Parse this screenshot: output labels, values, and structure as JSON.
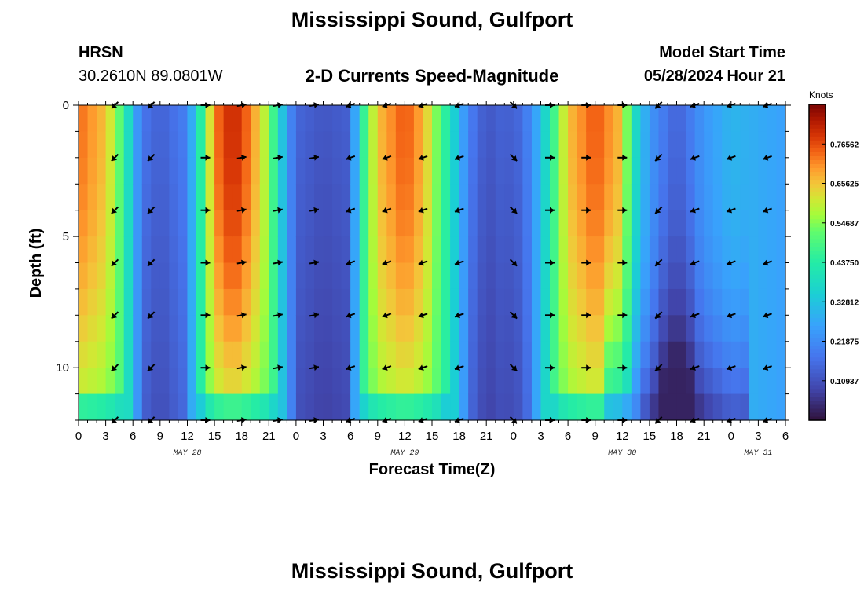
{
  "header": {
    "title": "Mississippi Sound, Gulfport",
    "station_id": "HRSN",
    "station_coords": "30.2610N  89.0801W",
    "subtitle": "2-D Currents Speed-Magnitude",
    "model_start_label": "Model Start Time",
    "model_start_value": "05/28/2024 Hour 21"
  },
  "footer": {
    "title": "Mississippi Sound, Gulfport"
  },
  "chart_data": {
    "type": "heatmap",
    "xlabel": "Forecast Time(Z)",
    "ylabel": "Depth (ft)",
    "x_range_hours": [
      0,
      78
    ],
    "x_ticks": [
      {
        "h": 0,
        "label": "0"
      },
      {
        "h": 3,
        "label": "3"
      },
      {
        "h": 6,
        "label": "6"
      },
      {
        "h": 9,
        "label": "9"
      },
      {
        "h": 12,
        "label": "12"
      },
      {
        "h": 15,
        "label": "15"
      },
      {
        "h": 18,
        "label": "18"
      },
      {
        "h": 21,
        "label": "21"
      },
      {
        "h": 24,
        "label": "0"
      },
      {
        "h": 27,
        "label": "3"
      },
      {
        "h": 30,
        "label": "6"
      },
      {
        "h": 33,
        "label": "9"
      },
      {
        "h": 36,
        "label": "12"
      },
      {
        "h": 39,
        "label": "15"
      },
      {
        "h": 42,
        "label": "18"
      },
      {
        "h": 45,
        "label": "21"
      },
      {
        "h": 48,
        "label": "0"
      },
      {
        "h": 51,
        "label": "3"
      },
      {
        "h": 54,
        "label": "6"
      },
      {
        "h": 57,
        "label": "9"
      },
      {
        "h": 60,
        "label": "12"
      },
      {
        "h": 63,
        "label": "15"
      },
      {
        "h": 66,
        "label": "18"
      },
      {
        "h": 69,
        "label": "21"
      },
      {
        "h": 72,
        "label": "0"
      },
      {
        "h": 75,
        "label": "3"
      },
      {
        "h": 78,
        "label": "6"
      }
    ],
    "date_labels": [
      {
        "h": 12,
        "label": "MAY 28"
      },
      {
        "h": 36,
        "label": "MAY 29"
      },
      {
        "h": 60,
        "label": "MAY 30"
      },
      {
        "h": 75,
        "label": "MAY 31"
      }
    ],
    "y_range_ft": [
      0,
      12
    ],
    "y_ticks": [
      {
        "v": 0,
        "label": "0"
      },
      {
        "v": 5,
        "label": "5"
      },
      {
        "v": 10,
        "label": "10"
      }
    ],
    "colorbar": {
      "unit": "Knots",
      "range": [
        0.0,
        0.875
      ],
      "ticks": [
        "0.76562",
        "0.65625",
        "0.54687",
        "0.43750",
        "0.32812",
        "0.21875",
        "0.10937"
      ],
      "tick_values": [
        0.76562,
        0.65625,
        0.54687,
        0.4375,
        0.32812,
        0.21875,
        0.10937
      ],
      "colormap": "turbo"
    },
    "speed_profile_keyframes": {
      "note_hours": "speed (knots) at surface vs forecast hour",
      "hours": [
        0,
        3,
        5,
        6,
        7,
        9,
        12,
        14,
        15,
        17,
        19,
        21,
        22,
        23,
        24,
        27,
        30,
        31,
        33,
        36,
        38,
        41,
        43,
        45,
        47,
        48,
        50,
        52,
        54,
        57,
        60,
        61,
        63,
        66,
        69,
        72,
        75,
        78
      ],
      "speeds": [
        0.74,
        0.66,
        0.47,
        0.3,
        0.18,
        0.14,
        0.2,
        0.52,
        0.72,
        0.82,
        0.72,
        0.55,
        0.4,
        0.25,
        0.15,
        0.12,
        0.14,
        0.4,
        0.66,
        0.76,
        0.68,
        0.4,
        0.2,
        0.12,
        0.15,
        0.13,
        0.22,
        0.42,
        0.66,
        0.76,
        0.66,
        0.42,
        0.24,
        0.14,
        0.24,
        0.3,
        0.28,
        0.26
      ]
    },
    "vectors": {
      "hours": [
        4,
        8,
        14,
        18,
        22,
        26,
        30,
        34,
        38,
        42,
        48,
        52,
        56,
        60,
        64,
        68,
        72,
        76
      ],
      "depths_ft": [
        0,
        2,
        4,
        6,
        8,
        10,
        12
      ],
      "angles_deg": [
        225,
        225,
        0,
        10,
        10,
        10,
        200,
        200,
        200,
        200,
        315,
        0,
        0,
        0,
        225,
        200,
        200,
        200
      ]
    }
  }
}
